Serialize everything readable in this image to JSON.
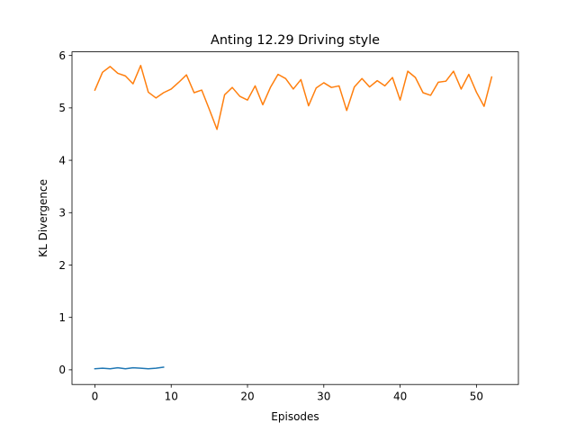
{
  "chart_data": {
    "type": "line",
    "title": "Anting 12.29 Driving style",
    "xlabel": "Episodes",
    "ylabel": "KL Divergence",
    "xlim": [
      -3,
      55.5
    ],
    "ylim": [
      -0.28,
      6.07
    ],
    "xticks": [
      0,
      10,
      20,
      30,
      40,
      50
    ],
    "yticks": [
      0,
      1,
      2,
      3,
      4,
      5,
      6
    ],
    "grid": false,
    "legend": "none",
    "series": [
      {
        "color": "#1f77b4",
        "x": [
          0,
          1,
          2,
          3,
          4,
          5,
          6,
          7,
          8,
          9
        ],
        "y": [
          0.02,
          0.03,
          0.02,
          0.04,
          0.02,
          0.04,
          0.03,
          0.02,
          0.03,
          0.05
        ]
      },
      {
        "color": "#ff7f0e",
        "x": [
          0,
          1,
          2,
          3,
          4,
          5,
          6,
          7,
          8,
          9,
          10,
          11,
          12,
          13,
          14,
          15,
          16,
          17,
          18,
          19,
          20,
          21,
          22,
          23,
          24,
          25,
          26,
          27,
          28,
          29,
          30,
          31,
          32,
          33,
          34,
          35,
          36,
          37,
          38,
          39,
          40,
          41,
          42,
          43,
          44,
          45,
          46,
          47,
          48,
          49,
          50,
          51,
          52
        ],
        "y": [
          5.34,
          5.68,
          5.79,
          5.66,
          5.61,
          5.46,
          5.81,
          5.3,
          5.19,
          5.29,
          5.36,
          5.49,
          5.63,
          5.29,
          5.34,
          4.97,
          4.59,
          5.25,
          5.39,
          5.22,
          5.15,
          5.42,
          5.06,
          5.39,
          5.64,
          5.56,
          5.36,
          5.54,
          5.04,
          5.38,
          5.48,
          5.39,
          5.42,
          4.95,
          5.4,
          5.56,
          5.4,
          5.52,
          5.42,
          5.58,
          5.15,
          5.7,
          5.58,
          5.29,
          5.24,
          5.49,
          5.51,
          5.7,
          5.36,
          5.64,
          5.3,
          5.03,
          5.59
        ]
      }
    ]
  }
}
